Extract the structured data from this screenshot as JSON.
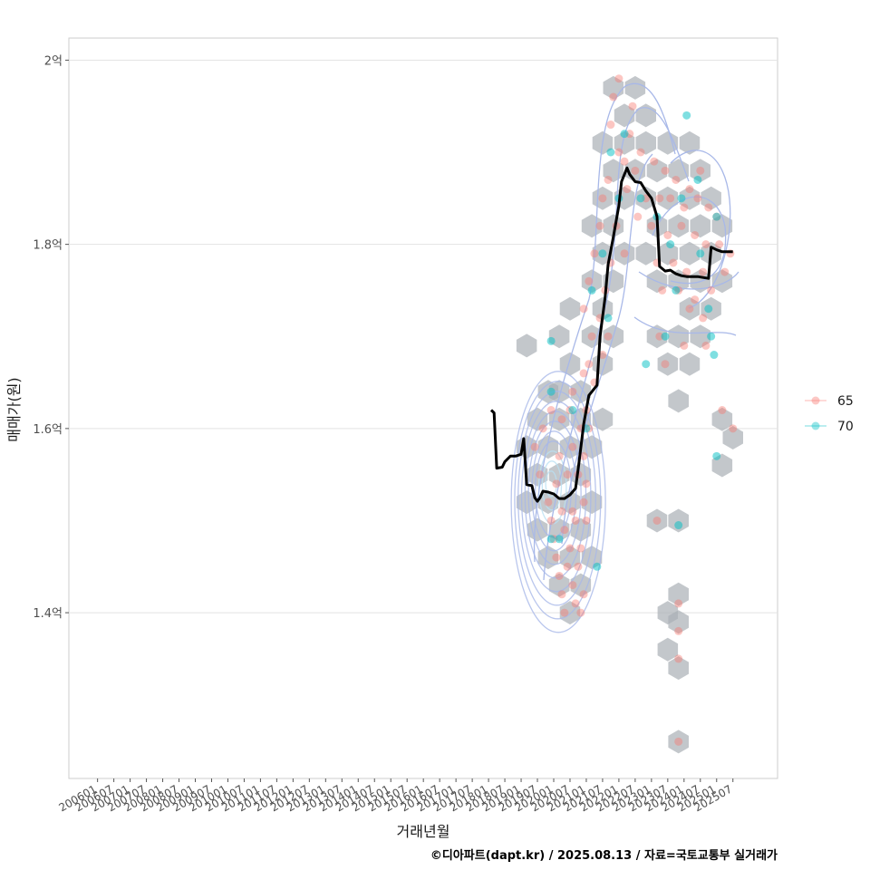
{
  "chart_data": {
    "type": "scatter",
    "ylabel": "매매가(원)",
    "xlabel": "거래년월",
    "y_ticks": [
      {
        "value": 1.4,
        "label": "1.4억"
      },
      {
        "value": 1.6,
        "label": "1.6억"
      },
      {
        "value": 1.8,
        "label": "1.8억"
      },
      {
        "value": 2.0,
        "label": "2억"
      }
    ],
    "ylim": [
      1.22,
      2.024
    ],
    "xlim": [
      2005.12,
      2026.87
    ],
    "x_ticks": [
      "200601",
      "200607",
      "200701",
      "200707",
      "200801",
      "200807",
      "200901",
      "200907",
      "201001",
      "201007",
      "201101",
      "201107",
      "201201",
      "201207",
      "201301",
      "201307",
      "201401",
      "201407",
      "201501",
      "201507",
      "201601",
      "201607",
      "201701",
      "201707",
      "201801",
      "201807",
      "201901",
      "201907",
      "202001",
      "202007",
      "202101",
      "202107",
      "202201",
      "202207",
      "202301",
      "202307",
      "202401",
      "202407",
      "202501",
      "202507"
    ],
    "legend": {
      "position": "right",
      "entries": [
        {
          "label": "65",
          "color": "#F8766D"
        },
        {
          "label": "70",
          "color": "#00BFC4"
        }
      ]
    },
    "moving_average": [
      [
        2018.08,
        1.62
      ],
      [
        2018.17,
        1.617
      ],
      [
        2018.25,
        1.557
      ],
      [
        2018.42,
        1.558
      ],
      [
        2018.5,
        1.564
      ],
      [
        2018.67,
        1.57
      ],
      [
        2018.83,
        1.57
      ],
      [
        2019.0,
        1.572
      ],
      [
        2019.08,
        1.589
      ],
      [
        2019.17,
        1.539
      ],
      [
        2019.33,
        1.538
      ],
      [
        2019.42,
        1.525
      ],
      [
        2019.5,
        1.521
      ],
      [
        2019.58,
        1.525
      ],
      [
        2019.67,
        1.532
      ],
      [
        2019.83,
        1.531
      ],
      [
        2020.0,
        1.529
      ],
      [
        2020.17,
        1.524
      ],
      [
        2020.33,
        1.524
      ],
      [
        2020.5,
        1.528
      ],
      [
        2020.67,
        1.535
      ],
      [
        2020.75,
        1.556
      ],
      [
        2020.92,
        1.605
      ],
      [
        2021.08,
        1.636
      ],
      [
        2021.33,
        1.647
      ],
      [
        2021.42,
        1.7
      ],
      [
        2021.58,
        1.743
      ],
      [
        2021.67,
        1.778
      ],
      [
        2021.83,
        1.808
      ],
      [
        2022.0,
        1.842
      ],
      [
        2022.08,
        1.868
      ],
      [
        2022.25,
        1.883
      ],
      [
        2022.33,
        1.876
      ],
      [
        2022.5,
        1.868
      ],
      [
        2022.67,
        1.867
      ],
      [
        2022.83,
        1.858
      ],
      [
        2023.0,
        1.85
      ],
      [
        2023.17,
        1.83
      ],
      [
        2023.25,
        1.776
      ],
      [
        2023.42,
        1.771
      ],
      [
        2023.58,
        1.772
      ],
      [
        2023.75,
        1.768
      ],
      [
        2023.92,
        1.766
      ],
      [
        2024.08,
        1.765
      ],
      [
        2024.25,
        1.765
      ],
      [
        2024.42,
        1.765
      ],
      [
        2024.58,
        1.764
      ],
      [
        2024.75,
        1.763
      ],
      [
        2024.83,
        1.797
      ],
      [
        2025.0,
        1.794
      ],
      [
        2025.17,
        1.792
      ],
      [
        2025.5,
        1.792
      ]
    ],
    "hexbins": [
      [
        2021.83,
        1.97
      ],
      [
        2022.5,
        1.97
      ],
      [
        2022.17,
        1.94
      ],
      [
        2022.83,
        1.94
      ],
      [
        2021.5,
        1.91
      ],
      [
        2022.17,
        1.91
      ],
      [
        2022.83,
        1.91
      ],
      [
        2023.5,
        1.91
      ],
      [
        2024.17,
        1.91
      ],
      [
        2021.83,
        1.88
      ],
      [
        2022.5,
        1.88
      ],
      [
        2023.17,
        1.88
      ],
      [
        2023.83,
        1.88
      ],
      [
        2024.5,
        1.88
      ],
      [
        2021.5,
        1.85
      ],
      [
        2022.17,
        1.85
      ],
      [
        2022.83,
        1.85
      ],
      [
        2023.5,
        1.85
      ],
      [
        2024.17,
        1.85
      ],
      [
        2024.83,
        1.85
      ],
      [
        2021.17,
        1.82
      ],
      [
        2021.83,
        1.82
      ],
      [
        2023.17,
        1.82
      ],
      [
        2023.83,
        1.82
      ],
      [
        2024.5,
        1.82
      ],
      [
        2025.17,
        1.82
      ],
      [
        2021.5,
        1.79
      ],
      [
        2022.17,
        1.79
      ],
      [
        2022.83,
        1.79
      ],
      [
        2023.5,
        1.79
      ],
      [
        2024.17,
        1.79
      ],
      [
        2024.83,
        1.79
      ],
      [
        2021.17,
        1.76
      ],
      [
        2021.83,
        1.76
      ],
      [
        2023.17,
        1.76
      ],
      [
        2023.83,
        1.76
      ],
      [
        2024.5,
        1.76
      ],
      [
        2025.17,
        1.76
      ],
      [
        2020.5,
        1.73
      ],
      [
        2021.5,
        1.73
      ],
      [
        2024.17,
        1.73
      ],
      [
        2024.83,
        1.73
      ],
      [
        2020.17,
        1.7
      ],
      [
        2021.17,
        1.7
      ],
      [
        2021.83,
        1.7
      ],
      [
        2023.17,
        1.7
      ],
      [
        2023.83,
        1.7
      ],
      [
        2024.5,
        1.7
      ],
      [
        2019.17,
        1.69
      ],
      [
        2020.5,
        1.67
      ],
      [
        2021.5,
        1.67
      ],
      [
        2023.5,
        1.67
      ],
      [
        2024.17,
        1.67
      ],
      [
        2019.83,
        1.64
      ],
      [
        2020.17,
        1.64
      ],
      [
        2020.83,
        1.64
      ],
      [
        2023.83,
        1.63
      ],
      [
        2019.5,
        1.61
      ],
      [
        2020.17,
        1.61
      ],
      [
        2020.83,
        1.61
      ],
      [
        2021.5,
        1.61
      ],
      [
        2025.17,
        1.61
      ],
      [
        2019.17,
        1.58
      ],
      [
        2019.83,
        1.58
      ],
      [
        2020.5,
        1.58
      ],
      [
        2021.17,
        1.58
      ],
      [
        2025.5,
        1.59
      ],
      [
        2019.5,
        1.55
      ],
      [
        2020.17,
        1.55
      ],
      [
        2020.83,
        1.55
      ],
      [
        2025.17,
        1.56
      ],
      [
        2019.17,
        1.52
      ],
      [
        2019.83,
        1.52
      ],
      [
        2020.5,
        1.52
      ],
      [
        2021.17,
        1.52
      ],
      [
        2019.5,
        1.49
      ],
      [
        2020.17,
        1.49
      ],
      [
        2020.83,
        1.49
      ],
      [
        2023.17,
        1.5
      ],
      [
        2023.83,
        1.5
      ],
      [
        2019.83,
        1.46
      ],
      [
        2020.5,
        1.46
      ],
      [
        2021.17,
        1.46
      ],
      [
        2020.17,
        1.43
      ],
      [
        2020.83,
        1.43
      ],
      [
        2023.83,
        1.42
      ],
      [
        2020.5,
        1.4
      ],
      [
        2023.5,
        1.4
      ],
      [
        2023.83,
        1.39
      ],
      [
        2023.5,
        1.36
      ],
      [
        2023.83,
        1.34
      ],
      [
        2023.83,
        1.26
      ]
    ],
    "points_65": [
      [
        2022.0,
        1.98
      ],
      [
        2021.83,
        1.96
      ],
      [
        2022.42,
        1.95
      ],
      [
        2022.33,
        1.92
      ],
      [
        2021.75,
        1.93
      ],
      [
        2022.67,
        1.9
      ],
      [
        2022.17,
        1.89
      ],
      [
        2022.0,
        1.9
      ],
      [
        2022.5,
        1.88
      ],
      [
        2023.08,
        1.89
      ],
      [
        2023.42,
        1.88
      ],
      [
        2023.75,
        1.87
      ],
      [
        2024.17,
        1.86
      ],
      [
        2024.5,
        1.88
      ],
      [
        2021.67,
        1.87
      ],
      [
        2022.25,
        1.86
      ],
      [
        2022.83,
        1.85
      ],
      [
        2023.25,
        1.85
      ],
      [
        2023.58,
        1.85
      ],
      [
        2024.0,
        1.84
      ],
      [
        2024.42,
        1.85
      ],
      [
        2024.75,
        1.84
      ],
      [
        2025.0,
        1.83
      ],
      [
        2021.5,
        1.85
      ],
      [
        2021.42,
        1.82
      ],
      [
        2021.92,
        1.82
      ],
      [
        2022.58,
        1.83
      ],
      [
        2023.0,
        1.82
      ],
      [
        2023.5,
        1.81
      ],
      [
        2023.92,
        1.82
      ],
      [
        2024.33,
        1.81
      ],
      [
        2024.67,
        1.8
      ],
      [
        2025.08,
        1.8
      ],
      [
        2025.42,
        1.79
      ],
      [
        2021.25,
        1.79
      ],
      [
        2021.75,
        1.78
      ],
      [
        2022.17,
        1.79
      ],
      [
        2023.17,
        1.78
      ],
      [
        2023.67,
        1.78
      ],
      [
        2024.08,
        1.77
      ],
      [
        2024.58,
        1.77
      ],
      [
        2025.25,
        1.77
      ],
      [
        2021.08,
        1.76
      ],
      [
        2021.58,
        1.75
      ],
      [
        2023.33,
        1.75
      ],
      [
        2023.83,
        1.75
      ],
      [
        2024.33,
        1.74
      ],
      [
        2024.83,
        1.75
      ],
      [
        2020.92,
        1.73
      ],
      [
        2021.42,
        1.72
      ],
      [
        2024.17,
        1.73
      ],
      [
        2024.58,
        1.72
      ],
      [
        2021.17,
        1.7
      ],
      [
        2021.67,
        1.7
      ],
      [
        2023.25,
        1.7
      ],
      [
        2024.0,
        1.69
      ],
      [
        2024.67,
        1.69
      ],
      [
        2021.08,
        1.67
      ],
      [
        2021.5,
        1.68
      ],
      [
        2023.42,
        1.67
      ],
      [
        2020.92,
        1.66
      ],
      [
        2021.25,
        1.65
      ],
      [
        2020.58,
        1.64
      ],
      [
        2021.0,
        1.62
      ],
      [
        2019.92,
        1.62
      ],
      [
        2020.25,
        1.61
      ],
      [
        2020.5,
        1.62
      ],
      [
        2020.83,
        1.6
      ],
      [
        2021.08,
        1.6
      ],
      [
        2019.67,
        1.6
      ],
      [
        2025.17,
        1.62
      ],
      [
        2025.5,
        1.6
      ],
      [
        2020.58,
        1.58
      ],
      [
        2020.92,
        1.57
      ],
      [
        2020.17,
        1.57
      ],
      [
        2019.42,
        1.58
      ],
      [
        2020.42,
        1.55
      ],
      [
        2020.75,
        1.55
      ],
      [
        2021.0,
        1.54
      ],
      [
        2019.58,
        1.55
      ],
      [
        2020.08,
        1.54
      ],
      [
        2019.83,
        1.52
      ],
      [
        2020.25,
        1.51
      ],
      [
        2020.58,
        1.51
      ],
      [
        2020.92,
        1.52
      ],
      [
        2019.92,
        1.5
      ],
      [
        2020.33,
        1.49
      ],
      [
        2020.67,
        1.5
      ],
      [
        2021.0,
        1.5
      ],
      [
        2020.0,
        1.48
      ],
      [
        2020.5,
        1.47
      ],
      [
        2020.83,
        1.47
      ],
      [
        2020.08,
        1.46
      ],
      [
        2020.42,
        1.45
      ],
      [
        2020.75,
        1.45
      ],
      [
        2020.17,
        1.44
      ],
      [
        2020.58,
        1.43
      ],
      [
        2020.92,
        1.42
      ],
      [
        2020.25,
        1.42
      ],
      [
        2020.67,
        1.41
      ],
      [
        2020.33,
        1.4
      ],
      [
        2020.83,
        1.4
      ],
      [
        2023.17,
        1.5
      ],
      [
        2023.83,
        1.41
      ],
      [
        2023.83,
        1.38
      ],
      [
        2023.83,
        1.35
      ],
      [
        2023.83,
        1.26
      ]
    ],
    "points_70": [
      [
        2019.92,
        1.695
      ],
      [
        2022.17,
        1.92
      ],
      [
        2021.75,
        1.9
      ],
      [
        2022.67,
        1.85
      ],
      [
        2023.17,
        1.83
      ],
      [
        2023.92,
        1.85
      ],
      [
        2024.42,
        1.87
      ],
      [
        2025.0,
        1.83
      ],
      [
        2024.08,
        1.94
      ],
      [
        2022.0,
        1.85
      ],
      [
        2023.58,
        1.8
      ],
      [
        2024.5,
        1.79
      ],
      [
        2021.5,
        1.79
      ],
      [
        2023.75,
        1.75
      ],
      [
        2024.75,
        1.73
      ],
      [
        2021.17,
        1.75
      ],
      [
        2023.42,
        1.7
      ],
      [
        2024.83,
        1.7
      ],
      [
        2022.83,
        1.67
      ],
      [
        2024.92,
        1.68
      ],
      [
        2021.67,
        1.72
      ],
      [
        2021.0,
        1.6
      ],
      [
        2019.92,
        1.64
      ],
      [
        2020.58,
        1.62
      ],
      [
        2021.33,
        1.45
      ],
      [
        2019.92,
        1.48
      ],
      [
        2020.17,
        1.48
      ],
      [
        2023.83,
        1.495
      ],
      [
        2025.0,
        1.57
      ]
    ],
    "density_center": [
      2019.92,
      1.54
    ],
    "caption": "©디아파트(dapt.kr) / 2025.08.13 / 자료=국토교통부 실거래가"
  }
}
